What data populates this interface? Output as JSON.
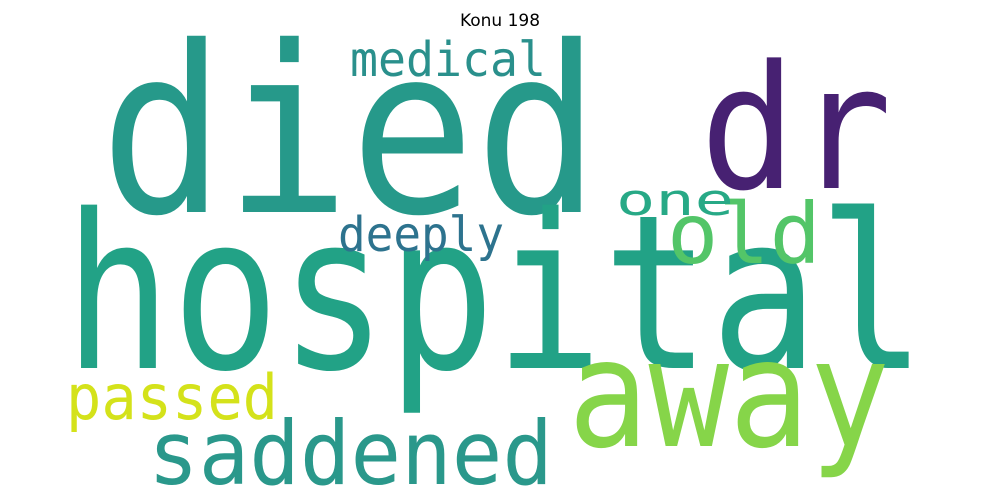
{
  "title": "Konu 198",
  "words": [
    {
      "text": "died",
      "color": "#26998a"
    },
    {
      "text": "dr",
      "color": "#472172"
    },
    {
      "text": "hospital",
      "color": "#22a286"
    },
    {
      "text": "away",
      "color": "#86d549"
    },
    {
      "text": "saddened",
      "color": "#2a988b"
    },
    {
      "text": "passed",
      "color": "#d4e21a"
    },
    {
      "text": "medical",
      "color": "#2a908c"
    },
    {
      "text": "old",
      "color": "#53c568"
    },
    {
      "text": "one",
      "color": "#27a986"
    },
    {
      "text": "deeply",
      "color": "#2d738e"
    }
  ]
}
